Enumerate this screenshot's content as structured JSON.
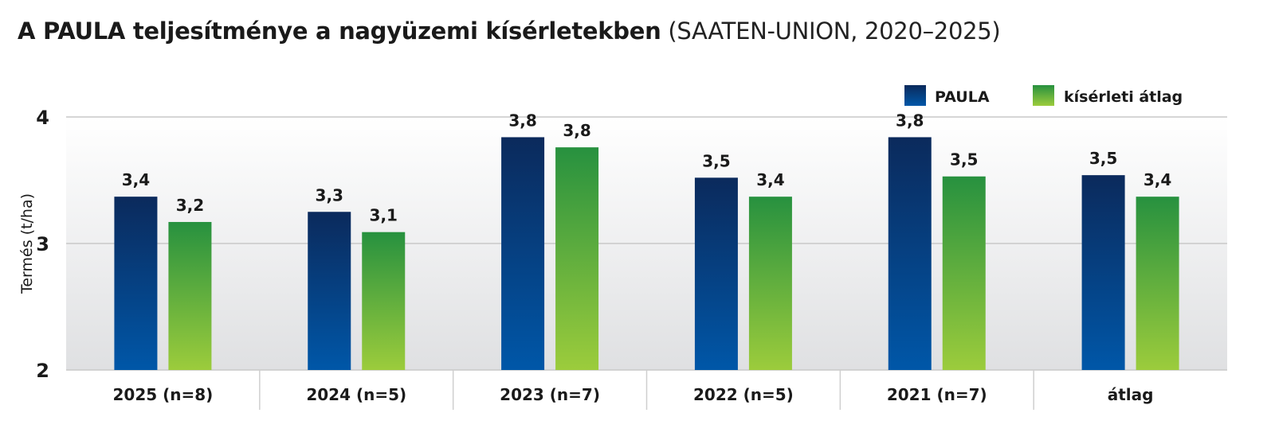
{
  "chart_data": {
    "type": "bar",
    "title": "A PAULA teljesítménye a nagyüzemi kísérletekben",
    "subtitle": "(SAATEN-UNION, 2020–2025)",
    "ylabel": "Termés (t/ha)",
    "xlabel": "",
    "ylim": [
      2,
      4
    ],
    "yticks": [
      "2",
      "3",
      "4"
    ],
    "categories": [
      "2025 (n=8)",
      "2024 (n=5)",
      "2023 (n=7)",
      "2022 (n=5)",
      "2021 (n=7)",
      "átlag"
    ],
    "legend_position": "top-right",
    "grid": true,
    "series": [
      {
        "name": "PAULA",
        "values": [
          3.37,
          3.25,
          3.84,
          3.52,
          3.84,
          3.54
        ],
        "labels": [
          "3,4",
          "3,3",
          "3,8",
          "3,5",
          "3,8",
          "3,5"
        ],
        "color_top": "#0b2a5c",
        "color_bottom": "#0057a8"
      },
      {
        "name": "kísérleti átlag",
        "values": [
          3.17,
          3.09,
          3.76,
          3.37,
          3.53,
          3.37
        ],
        "labels": [
          "3,2",
          "3,1",
          "3,8",
          "3,4",
          "3,5",
          "3,4"
        ],
        "color_top": "#27913f",
        "color_bottom": "#9ccc3c"
      }
    ]
  }
}
